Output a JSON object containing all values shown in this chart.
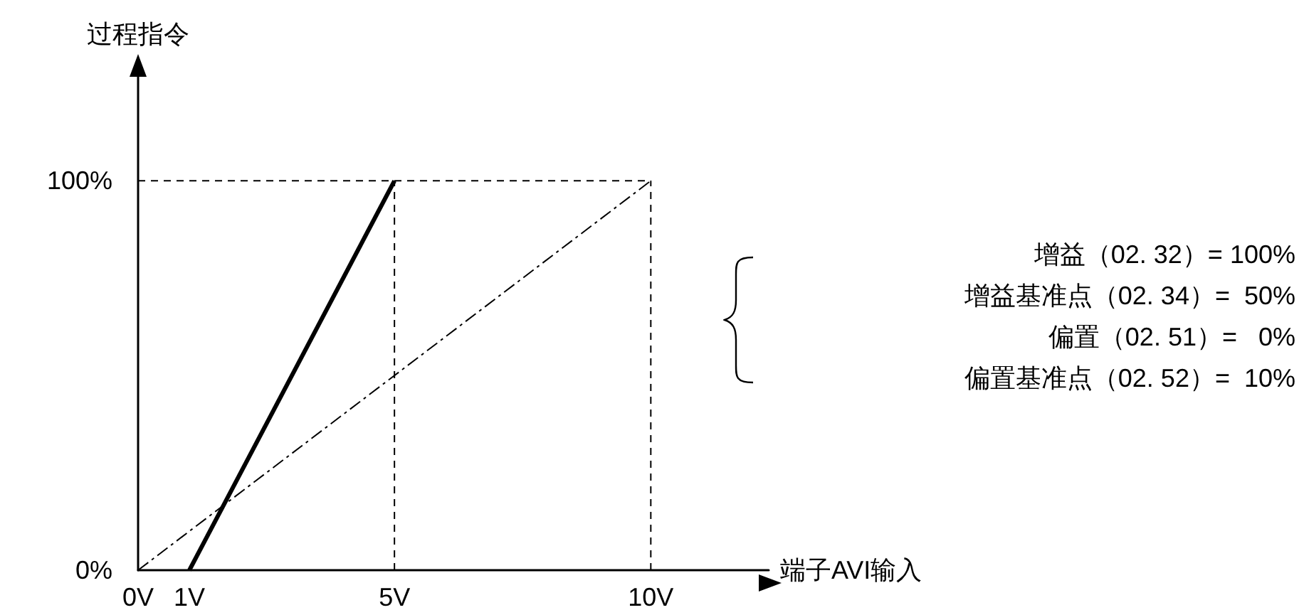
{
  "chart_data": {
    "type": "line",
    "xlabel": "端子AVI输入",
    "ylabel": "过程指令",
    "xlim": [
      0,
      12.3
    ],
    "ylim": [
      0,
      130
    ],
    "xticks": [
      {
        "value": 0,
        "label": "0V"
      },
      {
        "value": 1,
        "label": "1V"
      },
      {
        "value": 5,
        "label": "5V"
      },
      {
        "value": 10,
        "label": "10V"
      }
    ],
    "yticks": [
      {
        "value": 0,
        "label": "0%"
      },
      {
        "value": 100,
        "label": "100%"
      }
    ],
    "marker": "none",
    "series": [
      {
        "color": "#000000",
        "line_style": "solid",
        "x": [
          1,
          5
        ],
        "values": [
          0,
          100
        ]
      },
      {
        "color": "#000000",
        "line_style": "dashdot",
        "x": [
          0,
          10
        ],
        "values": [
          0,
          100
        ]
      },
      {
        "color": "#000000",
        "line_style": "dashed",
        "x": [
          0,
          10
        ],
        "values": [
          100,
          100
        ]
      },
      {
        "color": "#000000",
        "line_style": "dashed",
        "x": [
          5,
          5
        ],
        "values": [
          0,
          100
        ]
      },
      {
        "color": "#000000",
        "line_style": "dashed",
        "x": [
          10,
          10
        ],
        "values": [
          0,
          100
        ]
      }
    ],
    "annotations": [
      "增益（02. 32）= 100%",
      "增益基准点（02. 34）=  50%",
      "偏置（02. 51）=   0%",
      "偏置基准点（02. 52）=  10%"
    ]
  }
}
